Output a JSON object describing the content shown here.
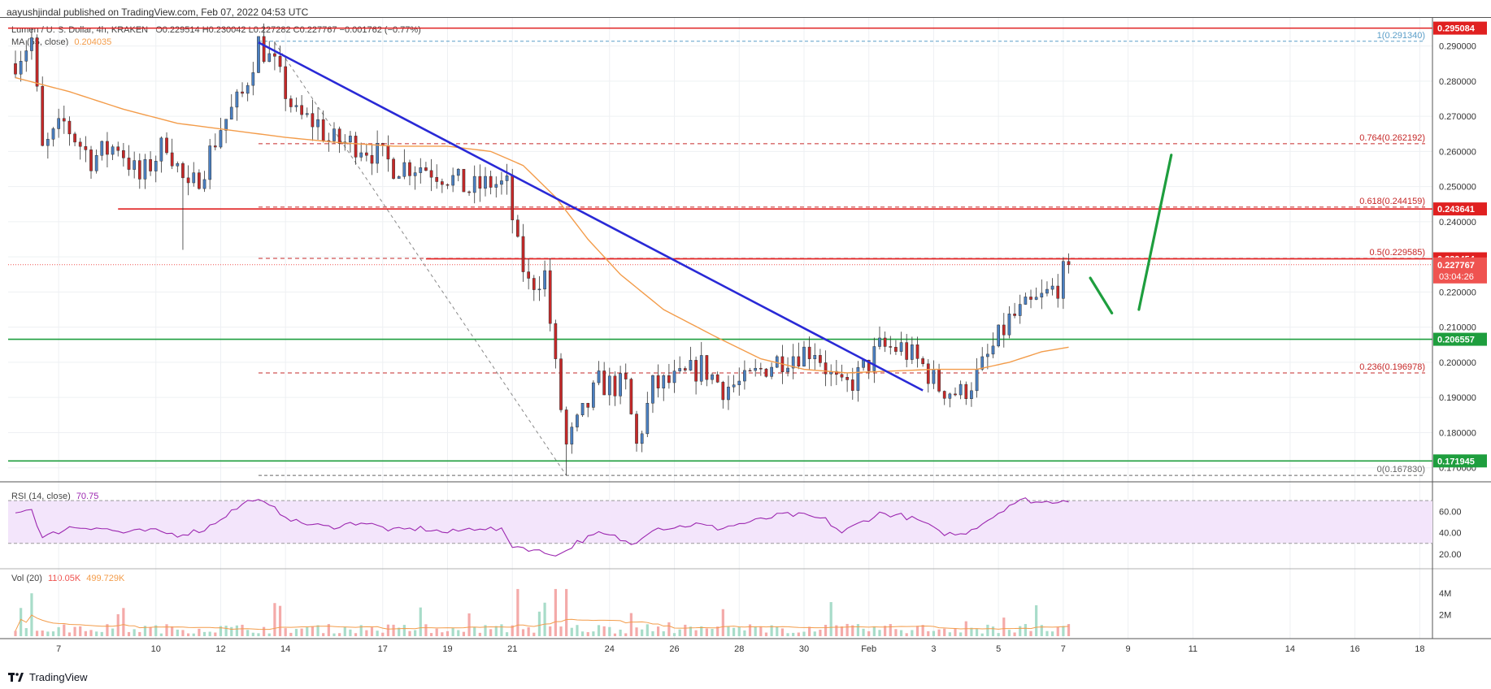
{
  "header": {
    "text": "aayushjindal published on TradingView.com, Feb 07, 2022 04:53 UTC"
  },
  "symbol": {
    "name": "Lumen / U. S. Dollar, 4h, KRAKEN",
    "o": "O0.229514",
    "h": "H0.230042",
    "l": "L0.227282",
    "c": "C0.227767",
    "chg": "−0.001762 (−0.77%)"
  },
  "ma_legend": {
    "label": "MA (55, close)",
    "value": "0.204035"
  },
  "rsi_legend": {
    "label": "RSI (14, close)",
    "value": "70.75"
  },
  "vol_legend": {
    "label": "Vol (20)",
    "v1": "110.05K",
    "v2": "499.729K"
  },
  "footer": {
    "brand": "TradingView"
  },
  "colors": {
    "up": "#26a69a",
    "down": "#ef5350",
    "ma": "#f39c4a",
    "trend": "#2929d6",
    "support": "#1e9e3e",
    "resistance": "#e02020",
    "fib": "#c62828",
    "rsi": "#9c27b0"
  },
  "chart_data": {
    "type": "candlestick",
    "y_range": [
      0.166,
      0.298
    ],
    "price_ticks": [
      "0.290000",
      "0.280000",
      "0.270000",
      "0.260000",
      "0.250000",
      "0.240000",
      "0.230000",
      "0.220000",
      "0.210000",
      "0.200000",
      "0.190000",
      "0.180000",
      "0.170000"
    ],
    "x_ticks": [
      {
        "label": "7",
        "i": 8
      },
      {
        "label": "10",
        "i": 26
      },
      {
        "label": "12",
        "i": 38
      },
      {
        "label": "14",
        "i": 50
      },
      {
        "label": "17",
        "i": 68
      },
      {
        "label": "19",
        "i": 80
      },
      {
        "label": "21",
        "i": 92
      },
      {
        "label": "24",
        "i": 110
      },
      {
        "label": "26",
        "i": 122
      },
      {
        "label": "28",
        "i": 134
      },
      {
        "label": "30",
        "i": 146
      },
      {
        "label": "Feb",
        "i": 158
      },
      {
        "label": "3",
        "i": 170
      },
      {
        "label": "5",
        "i": 182
      },
      {
        "label": "7",
        "i": 194
      },
      {
        "label": "9",
        "i": 206
      },
      {
        "label": "11",
        "i": 218
      },
      {
        "label": "14",
        "i": 236
      },
      {
        "label": "16",
        "i": 248
      },
      {
        "label": "18",
        "i": 260
      }
    ],
    "anchors": [
      [
        0,
        0.286
      ],
      [
        3,
        0.292
      ],
      [
        5,
        0.26
      ],
      [
        9,
        0.268
      ],
      [
        14,
        0.258
      ],
      [
        19,
        0.262
      ],
      [
        23,
        0.252
      ],
      [
        28,
        0.263
      ],
      [
        32,
        0.248
      ],
      [
        35,
        0.256
      ],
      [
        38,
        0.267
      ],
      [
        42,
        0.276
      ],
      [
        45,
        0.291
      ],
      [
        48,
        0.284
      ],
      [
        52,
        0.27
      ],
      [
        56,
        0.268
      ],
      [
        58,
        0.263
      ],
      [
        64,
        0.262
      ],
      [
        70,
        0.256
      ],
      [
        75,
        0.256
      ],
      [
        80,
        0.253
      ],
      [
        84,
        0.249
      ],
      [
        88,
        0.251
      ],
      [
        91,
        0.25
      ],
      [
        93,
        0.232
      ],
      [
        95,
        0.222
      ],
      [
        98,
        0.225
      ],
      [
        100,
        0.198
      ],
      [
        102,
        0.176
      ],
      [
        105,
        0.185
      ],
      [
        108,
        0.194
      ],
      [
        113,
        0.193
      ],
      [
        115,
        0.176
      ],
      [
        118,
        0.193
      ],
      [
        123,
        0.195
      ],
      [
        127,
        0.199
      ],
      [
        131,
        0.193
      ],
      [
        135,
        0.194
      ],
      [
        139,
        0.199
      ],
      [
        143,
        0.202
      ],
      [
        148,
        0.204
      ],
      [
        151,
        0.196
      ],
      [
        153,
        0.192
      ],
      [
        156,
        0.196
      ],
      [
        160,
        0.204
      ],
      [
        164,
        0.204
      ],
      [
        168,
        0.199
      ],
      [
        171,
        0.193
      ],
      [
        175,
        0.191
      ],
      [
        178,
        0.196
      ],
      [
        181,
        0.204
      ],
      [
        184,
        0.212
      ],
      [
        187,
        0.215
      ],
      [
        190,
        0.218
      ],
      [
        193,
        0.222
      ],
      [
        195,
        0.2278
      ]
    ],
    "candle_count": 196,
    "ma": [
      [
        0,
        0.281
      ],
      [
        10,
        0.277
      ],
      [
        20,
        0.272
      ],
      [
        30,
        0.268
      ],
      [
        40,
        0.266
      ],
      [
        50,
        0.264
      ],
      [
        60,
        0.2625
      ],
      [
        70,
        0.2615
      ],
      [
        80,
        0.2615
      ],
      [
        88,
        0.26
      ],
      [
        94,
        0.256
      ],
      [
        100,
        0.247
      ],
      [
        106,
        0.235
      ],
      [
        112,
        0.225
      ],
      [
        120,
        0.215
      ],
      [
        130,
        0.207
      ],
      [
        138,
        0.201
      ],
      [
        146,
        0.198
      ],
      [
        154,
        0.197
      ],
      [
        162,
        0.1975
      ],
      [
        170,
        0.198
      ],
      [
        178,
        0.198
      ],
      [
        184,
        0.2
      ],
      [
        190,
        0.203
      ],
      [
        195,
        0.2043
      ]
    ],
    "horizontal_levels": [
      {
        "price": 0.295084,
        "label": "0.295084",
        "color": "#e02020",
        "from": 0
      },
      {
        "price": 0.243641,
        "label": "0.243641",
        "color": "#e02020",
        "from": 19
      },
      {
        "price": 0.229454,
        "label": "0.229454",
        "color": "#e02020",
        "from": 76
      },
      {
        "price": 0.206557,
        "label": "0.206557",
        "color": "#1e9e3e",
        "from": 0
      },
      {
        "price": 0.171945,
        "label": "0.171945",
        "color": "#1e9e3e",
        "from": 0
      }
    ],
    "fib_levels": [
      {
        "ratio": "1",
        "price": 0.29134,
        "text": "1(0.291340)"
      },
      {
        "ratio": "0.764",
        "price": 0.262192,
        "text": "0.764(0.262192)"
      },
      {
        "ratio": "0.618",
        "price": 0.244159,
        "text": "0.618(0.244159)"
      },
      {
        "ratio": "0.5",
        "price": 0.229585,
        "text": "0.5(0.229585)"
      },
      {
        "ratio": "0.236",
        "price": 0.196978,
        "text": "0.236(0.196978)"
      },
      {
        "ratio": "0",
        "price": 0.16783,
        "text": "0(0.167830)"
      }
    ],
    "current_price": {
      "label": "0.227767",
      "countdown": "03:04:26",
      "price": 0.227767
    },
    "trendline": [
      [
        45,
        0.291
      ],
      [
        168,
        0.192
      ]
    ],
    "rsi": {
      "ticks": [
        "60.00",
        "40.00",
        "20.00"
      ],
      "upper": 70,
      "lower": 30,
      "anchors": [
        [
          0,
          60
        ],
        [
          3,
          62
        ],
        [
          5,
          35
        ],
        [
          10,
          45
        ],
        [
          15,
          45
        ],
        [
          20,
          40
        ],
        [
          25,
          42
        ],
        [
          30,
          38
        ],
        [
          35,
          43
        ],
        [
          40,
          60
        ],
        [
          44,
          72
        ],
        [
          48,
          62
        ],
        [
          52,
          50
        ],
        [
          58,
          45
        ],
        [
          64,
          50
        ],
        [
          70,
          42
        ],
        [
          75,
          44
        ],
        [
          80,
          40
        ],
        [
          86,
          45
        ],
        [
          90,
          42
        ],
        [
          92,
          28
        ],
        [
          95,
          25
        ],
        [
          98,
          21
        ],
        [
          101,
          20
        ],
        [
          104,
          31
        ],
        [
          108,
          39
        ],
        [
          111,
          36
        ],
        [
          114,
          29
        ],
        [
          118,
          44
        ],
        [
          122,
          45
        ],
        [
          126,
          48
        ],
        [
          130,
          44
        ],
        [
          134,
          48
        ],
        [
          138,
          52
        ],
        [
          142,
          57
        ],
        [
          146,
          56
        ],
        [
          150,
          52
        ],
        [
          153,
          40
        ],
        [
          156,
          48
        ],
        [
          160,
          58
        ],
        [
          164,
          56
        ],
        [
          168,
          50
        ],
        [
          171,
          40
        ],
        [
          175,
          38
        ],
        [
          178,
          46
        ],
        [
          181,
          55
        ],
        [
          184,
          66
        ],
        [
          187,
          71
        ],
        [
          190,
          68
        ],
        [
          193,
          70
        ],
        [
          195,
          71
        ]
      ]
    },
    "volume": {
      "ticks": [
        "4M",
        "2M"
      ],
      "max": 5000000
    },
    "projection": [
      {
        "from": [
          199,
          0.224
        ],
        "to": [
          203,
          0.214
        ],
        "color": "#1e9e3e"
      },
      {
        "from": [
          208,
          0.215
        ],
        "to": [
          214,
          0.259
        ],
        "color": "#1e9e3e"
      }
    ]
  }
}
